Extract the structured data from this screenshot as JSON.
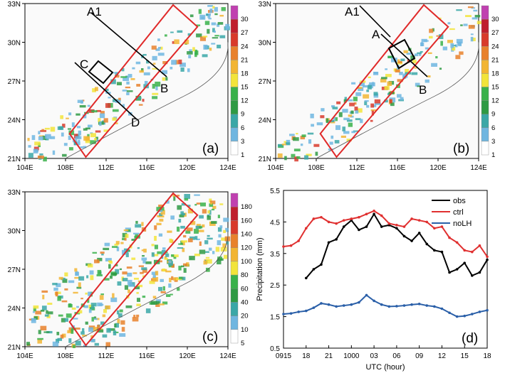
{
  "colors": {
    "rect": "#e02a2a",
    "box": "#000000",
    "obs": "#000000",
    "ctrl": "#e03030",
    "noLH": "#2a5fa8",
    "land": "#ffffff"
  },
  "maps": {
    "lat_ticks": [
      "21N",
      "24N",
      "27N",
      "30N",
      "33N"
    ],
    "lon_ticks": [
      "104E",
      "108E",
      "112E",
      "116E",
      "120E",
      "124E"
    ],
    "colorbar_small": [
      "1",
      "3",
      "6",
      "9",
      "12",
      "15",
      "18",
      "21",
      "24",
      "27",
      "30"
    ],
    "colorbar_big": [
      "5",
      "10",
      "20",
      "40",
      "60",
      "80",
      "100",
      "120",
      "140",
      "160",
      "180"
    ],
    "colorbar_colors": [
      "#ffffff",
      "#6fb6e0",
      "#3aa7a7",
      "#2f9a44",
      "#39b14a",
      "#f2e43a",
      "#f2b532",
      "#e8812c",
      "#d83a2b",
      "#bf1e2d",
      "#c040b0"
    ]
  },
  "panels": [
    {
      "label": "(a)",
      "lines": [
        {
          "a": "A1",
          "b": "B"
        },
        {
          "a": "C",
          "b": "D"
        }
      ]
    },
    {
      "label": "(b)",
      "lines": [
        {
          "a": "A1",
          "b": ""
        },
        {
          "a": "A",
          "b": "B"
        }
      ]
    },
    {
      "label": "(c)",
      "lines": []
    }
  ],
  "chart_data": {
    "type": "line",
    "label": "(d)",
    "xlabel": "UTC (hour)",
    "ylabel": "Precipitation (mm)",
    "ylim": [
      0.5,
      5.5
    ],
    "yticks": [
      "0.5",
      "1.5",
      "2.5",
      "3.5",
      "4.5",
      "5.5"
    ],
    "xticks": [
      "0915",
      "18",
      "21",
      "1000",
      "03",
      "06",
      "09",
      "12",
      "15",
      "18"
    ],
    "x_hours": [
      15,
      16,
      17,
      18,
      19,
      20,
      21,
      22,
      23,
      24,
      25,
      26,
      27,
      28,
      29,
      30,
      31,
      32,
      33,
      34,
      35,
      36,
      37,
      38,
      39,
      40,
      41,
      42
    ],
    "legend_position": "top-right",
    "series": [
      {
        "name": "obs",
        "values": [
          null,
          null,
          null,
          2.72,
          3.0,
          3.15,
          3.85,
          3.95,
          4.35,
          4.55,
          4.25,
          4.35,
          4.75,
          4.35,
          4.4,
          4.3,
          4.05,
          3.9,
          4.15,
          3.8,
          3.6,
          3.55,
          2.9,
          3.0,
          3.2,
          2.8,
          2.9,
          3.3
        ]
      },
      {
        "name": "ctrl",
        "values": [
          3.72,
          3.75,
          3.9,
          4.3,
          4.6,
          4.65,
          4.5,
          4.45,
          4.55,
          4.6,
          4.65,
          4.75,
          4.85,
          4.7,
          4.45,
          4.4,
          4.35,
          4.6,
          4.55,
          4.5,
          4.3,
          4.35,
          4.0,
          3.85,
          3.6,
          3.55,
          3.75,
          3.4
        ]
      },
      {
        "name": "noLH",
        "values": [
          1.58,
          1.6,
          1.65,
          1.68,
          1.78,
          1.92,
          1.88,
          1.82,
          1.85,
          1.88,
          1.95,
          2.18,
          2.0,
          1.88,
          1.82,
          1.83,
          1.85,
          1.88,
          1.9,
          1.85,
          1.82,
          1.75,
          1.62,
          1.5,
          1.52,
          1.58,
          1.65,
          1.7
        ]
      }
    ]
  }
}
